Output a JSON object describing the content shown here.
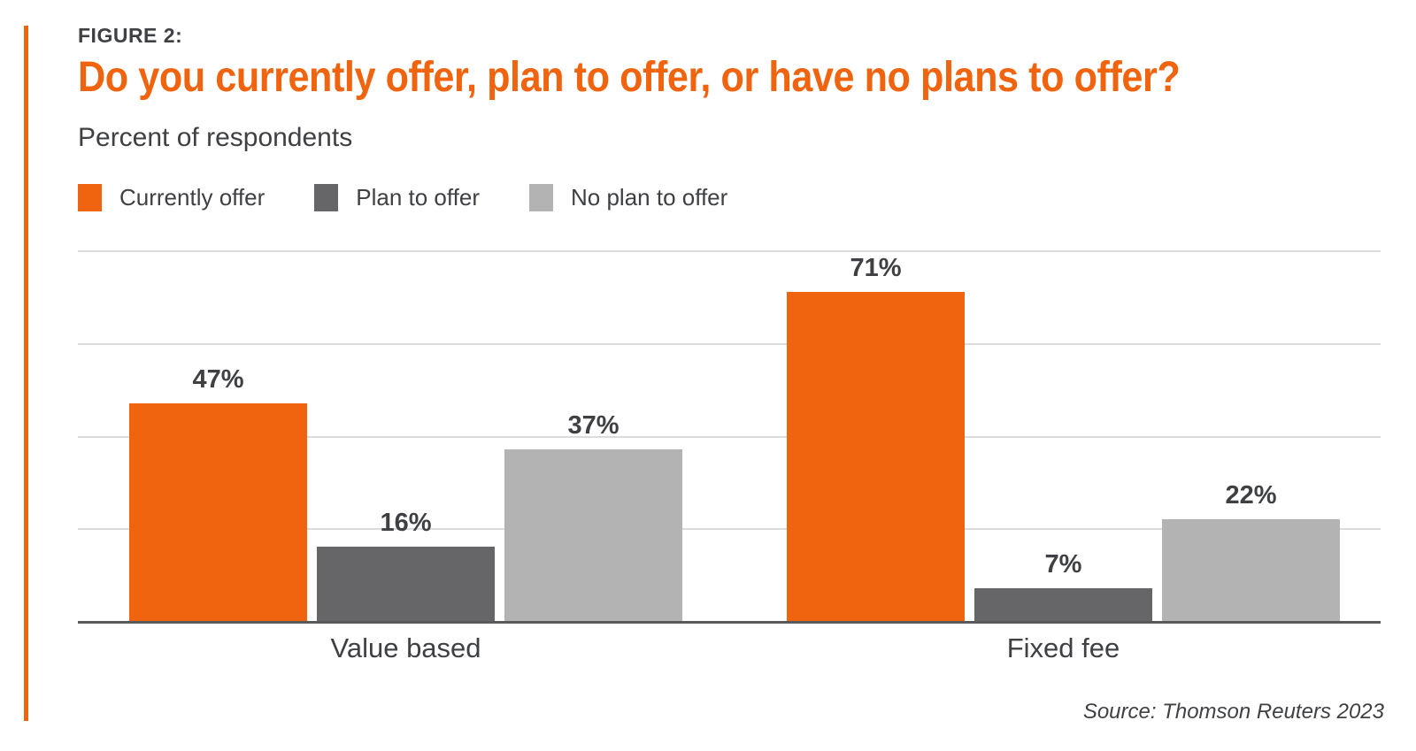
{
  "figure": {
    "label": "FIGURE 2:",
    "title": "Do you currently offer, plan to offer, or have no plans to offer?",
    "subtitle": "Percent of respondents",
    "source": "Source: Thomson Reuters 2023"
  },
  "colors": {
    "accent_orange": "#F0640F",
    "dark_gray": "#666668",
    "light_gray": "#B3B3B4",
    "text_dark": "#3E4043",
    "gridline": "#DBDCDD",
    "axis": "#58595B"
  },
  "legend": [
    {
      "label": "Currently offer",
      "color_key": "accent_orange"
    },
    {
      "label": "Plan to offer",
      "color_key": "dark_gray"
    },
    {
      "label": "No plan to offer",
      "color_key": "light_gray"
    }
  ],
  "chart_data": {
    "type": "bar",
    "title": "Do you currently offer, plan to offer, or have no plans to offer?",
    "ylabel": "Percent of respondents",
    "categories": [
      "Value based",
      "Fixed fee"
    ],
    "series": [
      {
        "name": "Currently offer",
        "color_key": "accent_orange",
        "values": [
          47,
          71
        ]
      },
      {
        "name": "Plan to offer",
        "color_key": "dark_gray",
        "values": [
          16,
          7
        ]
      },
      {
        "name": "No plan to offer",
        "color_key": "light_gray",
        "values": [
          37,
          22
        ]
      }
    ],
    "value_suffix": "%",
    "ylim": [
      0,
      80
    ],
    "gridline_step": 20,
    "grid": true,
    "y_axis_ticks_visible": false,
    "legend_position": "top"
  }
}
